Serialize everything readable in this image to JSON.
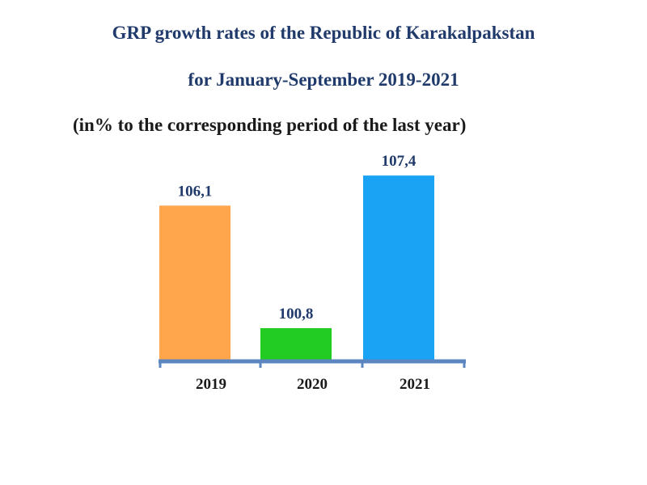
{
  "chart_data": {
    "type": "bar",
    "title": "GRP growth rates of the Republic of Karakalpakstan",
    "subtitle": "for January-September 2019-2021",
    "note": "(in% to the corresponding period of the last year)",
    "categories": [
      "2019",
      "2020",
      "2021"
    ],
    "values": [
      106.1,
      100.8,
      107.4
    ],
    "value_labels": [
      "106,1",
      "100,8",
      "107,4"
    ],
    "bar_colors": [
      "#ffa54c",
      "#22cc22",
      "#1aa3f5"
    ],
    "baseline_color": "#5b86c0",
    "ylim": [
      99.4,
      108
    ],
    "xlabel": "",
    "ylabel": ""
  }
}
